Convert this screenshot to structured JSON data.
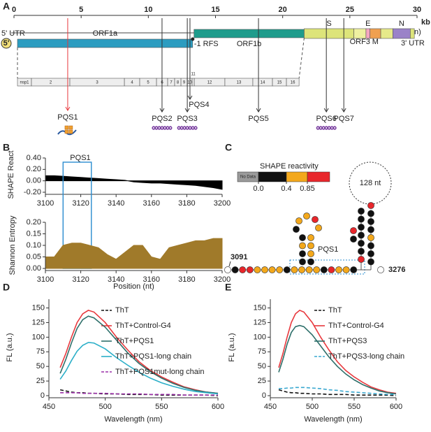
{
  "panels": [
    "A",
    "B",
    "C",
    "D",
    "E"
  ],
  "genome": {
    "lim": [
      0,
      30
    ],
    "ticks": [
      0,
      5,
      10,
      15,
      20,
      25,
      30
    ],
    "unit": "kb",
    "five_prime": "5'",
    "utr5": "5' UTR",
    "utr3": "3' UTR",
    "poly_a": "A(n)",
    "rfs": "-1 RFS",
    "segments": [
      {
        "label": "ORF1a",
        "start": 0.26,
        "end": 13.3,
        "color": "#2c9cc0"
      },
      {
        "label": "ORF1b",
        "start": 13.4,
        "end": 21.6,
        "color": "#1f9c8c"
      },
      {
        "label": "S",
        "start": 21.6,
        "end": 25.3,
        "color": "#dde47a"
      },
      {
        "label": "ORF3",
        "start": 25.3,
        "end": 26.2,
        "color": "#eef0a0"
      },
      {
        "label": "E",
        "start": 26.2,
        "end": 26.5,
        "color": "#f4a6c0"
      },
      {
        "label": "M",
        "start": 26.5,
        "end": 27.3,
        "color": "#f0a050"
      },
      {
        "start": 27.3,
        "end": 28.2,
        "color": "#e6e98a"
      },
      {
        "label": "N",
        "start": 28.2,
        "end": 29.5,
        "color": "#9a82c8"
      },
      {
        "start": 29.5,
        "end": 29.8,
        "color": "#dde47a"
      }
    ],
    "nsps": [
      {
        "label": "nsp1",
        "start": 0.26,
        "end": 1.3
      },
      {
        "label": "2",
        "start": 1.3,
        "end": 4.16
      },
      {
        "label": "3",
        "start": 4.16,
        "end": 8.22
      },
      {
        "label": "4",
        "start": 8.22,
        "end": 9.36
      },
      {
        "label": "5",
        "start": 9.36,
        "end": 10.61
      },
      {
        "label": "6",
        "start": 10.61,
        "end": 11.44
      },
      {
        "label": "7",
        "start": 11.44,
        "end": 11.96
      },
      {
        "label": "8",
        "start": 11.96,
        "end": 12.43
      },
      {
        "label": "9",
        "start": 12.43,
        "end": 12.9
      },
      {
        "label": "10",
        "start": 12.9,
        "end": 13.26
      },
      {
        "label": "11",
        "start": 13.26,
        "end": 13.42
      },
      {
        "label": "12",
        "start": 13.42,
        "end": 15.7
      },
      {
        "label": "13",
        "start": 15.7,
        "end": 17.78
      },
      {
        "label": "14",
        "start": 17.78,
        "end": 19.24
      },
      {
        "label": "15",
        "start": 19.24,
        "end": 20.28
      },
      {
        "label": "16",
        "start": 20.28,
        "end": 21.22
      }
    ],
    "pqs": [
      {
        "label": "PQS1",
        "pos": 4.0,
        "color": "#e8383d"
      },
      {
        "label": "PQS2",
        "pos": 11.02,
        "color": "#333333"
      },
      {
        "label": "PQS3",
        "pos": 12.9,
        "color": "#333333"
      },
      {
        "label": "PQS4",
        "pos": 13.1,
        "color": "#333333"
      },
      {
        "label": "PQS5",
        "pos": 18.2,
        "color": "#333333"
      },
      {
        "label": "PQS6",
        "pos": 23.25,
        "color": "#333333"
      },
      {
        "label": "PQS7",
        "pos": 24.55,
        "color": "#333333"
      }
    ]
  },
  "structure": {
    "legend_title": "SHAPE reactivity",
    "legend_bins": [
      {
        "label": "No Data",
        "color": "#9a9a9a"
      },
      {
        "color": "#111111"
      },
      {
        "color": "#f3a81c"
      },
      {
        "color": "#e8262b"
      }
    ],
    "legend_ticks": [
      {
        "value": 0,
        "label": "0.0"
      },
      {
        "value": 0.4,
        "label": "0.4"
      },
      {
        "value": 0.85,
        "label": "0.85"
      }
    ],
    "loop_label": "128 nt",
    "pqs_label": "PQS1",
    "start": 3091,
    "end": 3276
  },
  "chart_data": [
    {
      "type": "area",
      "ylabel": "SHAPE React",
      "color": "#000000",
      "x": [
        3100,
        3105,
        3110,
        3115,
        3120,
        3125,
        3130,
        3135,
        3140,
        3145,
        3150,
        3155,
        3160,
        3165,
        3170,
        3175,
        3180,
        3185,
        3190,
        3195,
        3200
      ],
      "values": [
        0.09,
        0.09,
        0.08,
        0.07,
        0.06,
        0.05,
        0.04,
        0.03,
        0.02,
        0.01,
        -0.02,
        -0.03,
        -0.04,
        -0.04,
        -0.05,
        -0.06,
        -0.07,
        -0.08,
        -0.1,
        -0.12,
        -0.15
      ],
      "xlim": [
        3100,
        3200
      ],
      "xticks": [
        3100,
        3120,
        3140,
        3160,
        3180,
        3200
      ],
      "ylim": [
        -0.2,
        0.4
      ],
      "yticks": [
        {
          "value": -0.2,
          "label": "-0.20"
        },
        {
          "value": 0,
          "label": "0.00"
        },
        {
          "value": 0.2,
          "label": "0.20"
        },
        {
          "value": 0.4,
          "label": "0.40"
        }
      ],
      "highlight": {
        "label": "PQS1",
        "x": [
          3110,
          3126
        ],
        "color": "#2a8ccf"
      }
    },
    {
      "type": "area",
      "ylabel": "Shannon Entropy",
      "xlabel": "Position (nt)",
      "color": "#a07a2a",
      "x": [
        3100,
        3105,
        3110,
        3115,
        3120,
        3125,
        3130,
        3135,
        3140,
        3145,
        3150,
        3155,
        3160,
        3165,
        3170,
        3175,
        3180,
        3185,
        3190,
        3195,
        3200
      ],
      "values": [
        0.05,
        0.05,
        0.1,
        0.11,
        0.11,
        0.1,
        0.09,
        0.06,
        0.04,
        0.07,
        0.1,
        0.1,
        0.05,
        0.04,
        0.09,
        0.1,
        0.11,
        0.12,
        0.12,
        0.13,
        0.13
      ],
      "xlim": [
        3100,
        3200
      ],
      "xticks": [
        3100,
        3120,
        3140,
        3160,
        3180,
        3200
      ],
      "ylim": [
        0,
        0.2
      ],
      "yticks": [
        {
          "value": 0,
          "label": "0.00"
        },
        {
          "value": 0.05,
          "label": "0.05"
        },
        {
          "value": 0.1,
          "label": "0.10"
        },
        {
          "value": 0.15,
          "label": "0.15"
        },
        {
          "value": 0.2,
          "label": "0.20"
        }
      ]
    },
    {
      "type": "line",
      "ylabel": "FL (a.u.)",
      "xlabel": "Wavelength (nm)",
      "x": [
        460,
        465,
        470,
        475,
        480,
        485,
        490,
        500,
        510,
        520,
        530,
        540,
        550,
        560,
        570,
        580,
        590,
        600
      ],
      "series": [
        {
          "name": "ThT",
          "color": "#111111",
          "dash": true,
          "values": [
            10,
            8,
            6,
            5,
            5,
            4,
            4,
            3,
            3,
            2,
            2,
            2,
            1,
            1,
            1,
            1,
            1,
            0
          ]
        },
        {
          "name": "ThT+Control-G4",
          "color": "#e8383d",
          "values": [
            48,
            72,
            100,
            125,
            140,
            146,
            143,
            125,
            100,
            78,
            58,
            43,
            32,
            23,
            15,
            10,
            6,
            4
          ]
        },
        {
          "name": "ThT+PQS1",
          "color": "#2e6f6a",
          "values": [
            38,
            62,
            90,
            115,
            130,
            136,
            133,
            117,
            95,
            73,
            55,
            41,
            30,
            21,
            14,
            9,
            6,
            4
          ]
        },
        {
          "name": "ThT+PQS1-long chain",
          "color": "#2bafc8",
          "values": [
            28,
            42,
            60,
            76,
            86,
            91,
            90,
            80,
            65,
            52,
            40,
            30,
            22,
            16,
            11,
            7,
            5,
            3
          ]
        },
        {
          "name": "ThT+PQS1mut-long chain",
          "color": "#9b30a8",
          "dash": true,
          "values": [
            5,
            5,
            5,
            5,
            4,
            4,
            4,
            4,
            3,
            3,
            3,
            2,
            2,
            2,
            1,
            1,
            1,
            1
          ]
        }
      ],
      "xlim": [
        450,
        600
      ],
      "xticks": [
        450,
        500,
        550,
        600
      ],
      "ylim": [
        0,
        165
      ],
      "yticks": [
        0,
        25,
        50,
        75,
        100,
        125,
        150
      ],
      "legend": "upper right"
    },
    {
      "type": "line",
      "ylabel": "FL (a.u.)",
      "xlabel": "Wavelength (nm)",
      "x": [
        460,
        465,
        470,
        475,
        480,
        485,
        490,
        500,
        510,
        520,
        530,
        540,
        550,
        560,
        570,
        580,
        590,
        600
      ],
      "series": [
        {
          "name": "ThT",
          "color": "#111111",
          "dash": true,
          "values": [
            10,
            8,
            6,
            5,
            5,
            4,
            4,
            3,
            3,
            2,
            2,
            2,
            1,
            1,
            1,
            1,
            1,
            0
          ]
        },
        {
          "name": "ThT+Control-G4",
          "color": "#e8383d",
          "values": [
            48,
            72,
            100,
            125,
            140,
            146,
            143,
            125,
            100,
            78,
            58,
            43,
            32,
            23,
            15,
            10,
            6,
            4
          ]
        },
        {
          "name": "ThT+PQS3",
          "color": "#2e6f6a",
          "values": [
            40,
            62,
            88,
            108,
            118,
            120,
            118,
            104,
            85,
            66,
            50,
            37,
            27,
            19,
            13,
            8,
            5,
            3
          ]
        },
        {
          "name": "ThT+PQS3-long chain",
          "color": "#3aa8d0",
          "dash": true,
          "values": [
            12,
            12,
            13,
            13,
            14,
            14,
            14,
            13,
            12,
            10,
            9,
            7,
            6,
            5,
            4,
            3,
            2,
            2
          ]
        }
      ],
      "xlim": [
        450,
        600
      ],
      "xticks": [
        450,
        500,
        550,
        600
      ],
      "ylim": [
        0,
        165
      ],
      "yticks": [
        0,
        25,
        50,
        75,
        100,
        125,
        150
      ],
      "legend": "upper right"
    }
  ]
}
